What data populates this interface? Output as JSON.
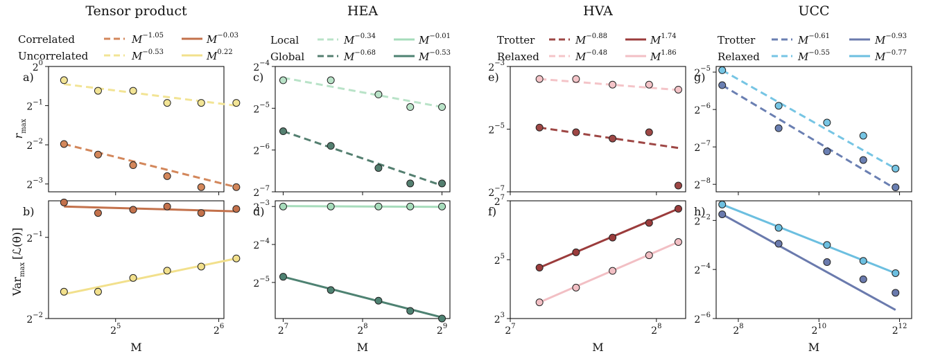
{
  "figure": {
    "columns": [
      {
        "title": "Tensor product",
        "xlabel": "M",
        "legend_rows": [
          {
            "label": "Correlated",
            "series": [
              {
                "text": "M",
                "exp": "−1.05",
                "color": "#d3875b",
                "style": "dashed"
              },
              {
                "text": "M",
                "exp": "−0.03",
                "color": "#c3714b",
                "style": "solid"
              }
            ]
          },
          {
            "label": "Uncorrelated",
            "series": [
              {
                "text": "M",
                "exp": "−0.53",
                "color": "#f2e495",
                "style": "dashed"
              },
              {
                "text": "M",
                "exp": "0.22",
                "color": "#f2e08c",
                "style": "solid"
              }
            ]
          }
        ],
        "xticks": [
          {
            "label": "2",
            "exp": "5",
            "v": 5
          },
          {
            "label": "2",
            "exp": "6",
            "v": 6
          }
        ],
        "xlim": [
          4.35,
          6.05
        ]
      },
      {
        "title": "HEA",
        "xlabel": "M",
        "legend_rows": [
          {
            "label": "Local",
            "series": [
              {
                "text": "M",
                "exp": "−0.34",
                "color": "#b9e3c8",
                "style": "dashed"
              },
              {
                "text": "M",
                "exp": "−0.01",
                "color": "#a6dcbb",
                "style": "solid"
              }
            ]
          },
          {
            "label": "Global",
            "series": [
              {
                "text": "M",
                "exp": "−0.68",
                "color": "#547f70",
                "style": "dashed"
              },
              {
                "text": "M",
                "exp": "−0.53",
                "color": "#4e8272",
                "style": "solid"
              }
            ]
          }
        ],
        "xticks": [
          {
            "label": "2",
            "exp": "7",
            "v": 7
          },
          {
            "label": "2",
            "exp": "8",
            "v": 8
          },
          {
            "label": "2",
            "exp": "9",
            "v": 9
          }
        ],
        "xlim": [
          6.9,
          9.1
        ]
      },
      {
        "title": "HVA",
        "xlabel": "M",
        "legend_rows": [
          {
            "label": "Trotter",
            "series": [
              {
                "text": "M",
                "exp": "−0.88",
                "color": "#9e4745",
                "style": "dashed"
              },
              {
                "text": "M",
                "exp": "1.74",
                "color": "#9b3c3c",
                "style": "solid"
              }
            ]
          },
          {
            "label": "Relaxed",
            "series": [
              {
                "text": "M",
                "exp": "−0.48",
                "color": "#f4c4c8",
                "style": "dashed"
              },
              {
                "text": "M",
                "exp": "1.86",
                "color": "#f2bfc4",
                "style": "solid"
              }
            ]
          }
        ],
        "xticks": [
          {
            "label": "2",
            "exp": "7",
            "v": 7
          },
          {
            "label": "2",
            "exp": "8",
            "v": 8
          }
        ],
        "xlim": [
          7.0,
          8.2
        ]
      },
      {
        "title": "UCC",
        "xlabel": "M",
        "legend_rows": [
          {
            "label": "Trotter",
            "series": [
              {
                "text": "M",
                "exp": "−0.61",
                "color": "#6a7fb2",
                "style": "dashed"
              },
              {
                "text": "M",
                "exp": "−0.93",
                "color": "#6a7aad",
                "style": "solid"
              }
            ]
          },
          {
            "label": "Relaxed",
            "series": [
              {
                "text": "M",
                "exp": "−0.55",
                "color": "#76c5e4",
                "style": "dashed"
              },
              {
                "text": "M",
                "exp": "−0.77",
                "color": "#6cbfe0",
                "style": "solid"
              }
            ]
          }
        ],
        "xticks": [
          {
            "label": "2",
            "exp": "8",
            "v": 8
          },
          {
            "label": "2",
            "exp": "10",
            "v": 10
          },
          {
            "label": "2",
            "exp": "12",
            "v": 12
          }
        ],
        "xlim": [
          7.45,
          12.3
        ]
      }
    ],
    "row_ylabels": [
      {
        "main": "r",
        "sub": "max"
      },
      {
        "main": "Var",
        "sub": "max",
        "tail": "[ℒ(θ)]"
      }
    ]
  },
  "chart_data": [
    {
      "panel": "a)",
      "type": "scatter",
      "xscale": "log2",
      "yscale": "log2",
      "ylim": [
        -3.2,
        0.0
      ],
      "yticks": [
        {
          "label": "2",
          "exp": "0",
          "v": 0
        },
        {
          "label": "2",
          "exp": "−1",
          "v": -1
        },
        {
          "label": "2",
          "exp": "−2",
          "v": -2
        },
        {
          "label": "2",
          "exp": "−3",
          "v": -3
        }
      ],
      "series": [
        {
          "legend": "Uncorrelated",
          "color": "#f2e495",
          "line": "dashed",
          "x": [
            4.5,
            4.83,
            5.17,
            5.5,
            5.83,
            6.17
          ],
          "y": [
            -0.35,
            -0.62,
            -0.62,
            -0.93,
            -0.93,
            -0.93
          ],
          "fit": [
            [
              4.5,
              -0.45
            ],
            [
              6.17,
              -1.0
            ]
          ]
        },
        {
          "legend": "Correlated",
          "color": "#d3875b",
          "line": "dashed",
          "x": [
            4.5,
            4.83,
            5.17,
            5.5,
            5.83,
            6.17
          ],
          "y": [
            -1.98,
            -2.25,
            -2.52,
            -2.8,
            -3.08,
            -3.08
          ],
          "fit": [
            [
              4.5,
              -1.98
            ],
            [
              6.17,
              -3.08
            ]
          ]
        }
      ]
    },
    {
      "panel": "b)",
      "type": "scatter",
      "xscale": "log2",
      "yscale": "log2",
      "ylim": [
        -2.0,
        -0.55
      ],
      "yticks": [
        {
          "label": "2",
          "exp": "−1",
          "v": -1
        },
        {
          "label": "2",
          "exp": "−2",
          "v": -2
        }
      ],
      "series": [
        {
          "legend": "Correlated",
          "color": "#c3714b",
          "line": "solid",
          "x": [
            4.5,
            4.83,
            5.17,
            5.5,
            5.83,
            6.17
          ],
          "y": [
            -0.57,
            -0.7,
            -0.66,
            -0.62,
            -0.7,
            -0.65
          ],
          "fit": [
            [
              4.5,
              -0.62
            ],
            [
              6.17,
              -0.68
            ]
          ]
        },
        {
          "legend": "Uncorrelated",
          "color": "#f2e08c",
          "line": "solid",
          "x": [
            4.5,
            4.83,
            5.17,
            5.5,
            5.83,
            6.17
          ],
          "y": [
            -1.67,
            -1.67,
            -1.5,
            -1.41,
            -1.36,
            -1.26
          ],
          "fit": [
            [
              4.5,
              -1.7
            ],
            [
              6.17,
              -1.26
            ]
          ]
        }
      ]
    },
    {
      "panel": "c)",
      "type": "scatter",
      "xscale": "log2",
      "yscale": "log2",
      "ylim": [
        -7.0,
        -4.0
      ],
      "yticks": [
        {
          "label": "2",
          "exp": "−4",
          "v": -4
        },
        {
          "label": "2",
          "exp": "−5",
          "v": -5
        },
        {
          "label": "2",
          "exp": "−6",
          "v": -6
        },
        {
          "label": "2",
          "exp": "−7",
          "v": -7
        }
      ],
      "series": [
        {
          "legend": "Local",
          "color": "#b9e3c8",
          "line": "dashed",
          "x": [
            7.0,
            7.6,
            8.2,
            8.6,
            9.0
          ],
          "y": [
            -4.33,
            -4.33,
            -4.67,
            -4.97,
            -4.97
          ],
          "fit": [
            [
              7.0,
              -4.27
            ],
            [
              9.0,
              -4.97
            ]
          ]
        },
        {
          "legend": "Global",
          "color": "#547f70",
          "line": "dashed",
          "x": [
            7.0,
            7.6,
            8.2,
            8.6,
            9.0
          ],
          "y": [
            -5.55,
            -5.9,
            -6.43,
            -6.8,
            -6.8
          ],
          "fit": [
            [
              7.0,
              -5.55
            ],
            [
              9.0,
              -6.85
            ]
          ]
        }
      ]
    },
    {
      "panel": "d)",
      "type": "scatter",
      "xscale": "log2",
      "yscale": "log2",
      "ylim": [
        -5.95,
        -2.85
      ],
      "yticks": [
        {
          "label": "2",
          "exp": "−3",
          "v": -3
        },
        {
          "label": "2",
          "exp": "−4",
          "v": -4
        },
        {
          "label": "2",
          "exp": "−5",
          "v": -5
        }
      ],
      "series": [
        {
          "legend": "Local",
          "color": "#a6dcbb",
          "line": "solid",
          "x": [
            7.0,
            7.6,
            8.2,
            8.6,
            9.0
          ],
          "y": [
            -3.0,
            -3.0,
            -3.0,
            -3.0,
            -3.0
          ],
          "fit": [
            [
              7.0,
              -2.99
            ],
            [
              9.0,
              -3.01
            ]
          ]
        },
        {
          "legend": "Global",
          "color": "#4e8272",
          "line": "solid",
          "x": [
            7.0,
            7.6,
            8.2,
            8.6,
            9.0
          ],
          "y": [
            -4.85,
            -5.2,
            -5.48,
            -5.75,
            -5.95
          ],
          "fit": [
            [
              7.0,
              -4.85
            ],
            [
              9.0,
              -5.92
            ]
          ]
        }
      ]
    },
    {
      "panel": "e)",
      "type": "scatter",
      "xscale": "log2",
      "yscale": "log2",
      "ylim": [
        -7.0,
        -3.0
      ],
      "yticks": [
        {
          "label": "2",
          "exp": "−3",
          "v": -3
        },
        {
          "label": "2",
          "exp": "−5",
          "v": -5
        },
        {
          "label": "2",
          "exp": "−7",
          "v": -7
        }
      ],
      "series": [
        {
          "legend": "Relaxed",
          "color": "#f4c4c8",
          "line": "dashed",
          "x": [
            7.2,
            7.45,
            7.7,
            7.95,
            8.15
          ],
          "y": [
            -3.4,
            -3.4,
            -3.58,
            -3.58,
            -3.74
          ],
          "fit": [
            [
              7.2,
              -3.4
            ],
            [
              8.15,
              -3.75
            ]
          ]
        },
        {
          "legend": "Trotter",
          "color": "#9e4745",
          "line": "dashed",
          "x": [
            7.2,
            7.45,
            7.7,
            7.95,
            8.15
          ],
          "y": [
            -4.95,
            -5.1,
            -5.3,
            -5.1,
            -6.8
          ],
          "fit": [
            [
              7.2,
              -4.95
            ],
            [
              8.15,
              -5.6
            ]
          ]
        }
      ]
    },
    {
      "panel": "f)",
      "type": "scatter",
      "xscale": "log2",
      "yscale": "log2",
      "ylim": [
        3.0,
        7.0
      ],
      "yticks": [
        {
          "label": "2",
          "exp": "7",
          "v": 7
        },
        {
          "label": "2",
          "exp": "5",
          "v": 5
        },
        {
          "label": "2",
          "exp": "3",
          "v": 3
        }
      ],
      "series": [
        {
          "legend": "Trotter",
          "color": "#9b3c3c",
          "line": "solid",
          "x": [
            7.2,
            7.45,
            7.7,
            7.95,
            8.15
          ],
          "y": [
            4.73,
            5.25,
            5.75,
            6.25,
            6.73
          ],
          "fit": [
            [
              7.2,
              4.73
            ],
            [
              8.15,
              6.73
            ]
          ]
        },
        {
          "legend": "Relaxed",
          "color": "#f2bfc4",
          "line": "solid",
          "x": [
            7.2,
            7.45,
            7.7,
            7.95,
            8.15
          ],
          "y": [
            3.55,
            4.05,
            4.62,
            5.15,
            5.6
          ],
          "fit": [
            [
              7.2,
              3.55
            ],
            [
              8.15,
              5.6
            ]
          ]
        }
      ]
    },
    {
      "panel": "g)",
      "type": "scatter",
      "xscale": "log2",
      "yscale": "log2",
      "ylim": [
        -8.2,
        -4.85
      ],
      "yticks": [
        {
          "label": "2",
          "exp": "−5",
          "v": -5
        },
        {
          "label": "2",
          "exp": "−6",
          "v": -6
        },
        {
          "label": "2",
          "exp": "−7",
          "v": -7
        },
        {
          "label": "2",
          "exp": "−8",
          "v": -8
        }
      ],
      "series": [
        {
          "legend": "Relaxed",
          "color": "#76c5e4",
          "line": "dashed",
          "x": [
            7.6,
            9.0,
            10.2,
            11.1,
            11.9
          ],
          "y": [
            -4.95,
            -5.9,
            -6.35,
            -6.7,
            -7.58
          ],
          "fit": [
            [
              7.6,
              -4.95
            ],
            [
              11.9,
              -7.58
            ]
          ]
        },
        {
          "legend": "Trotter",
          "color": "#6a7fb2",
          "line": "dashed",
          "x": [
            7.6,
            9.0,
            10.2,
            11.1,
            11.9
          ],
          "y": [
            -5.35,
            -6.5,
            -7.12,
            -7.35,
            -8.08
          ],
          "fit": [
            [
              7.6,
              -5.35
            ],
            [
              11.9,
              -8.12
            ]
          ]
        }
      ]
    },
    {
      "panel": "h)",
      "type": "scatter",
      "xscale": "log2",
      "yscale": "log2",
      "ylim": [
        -6.0,
        -1.2
      ],
      "yticks": [
        {
          "label": "2",
          "exp": "−2",
          "v": -2
        },
        {
          "label": "2",
          "exp": "−4",
          "v": -4
        },
        {
          "label": "2",
          "exp": "−6",
          "v": -6
        }
      ],
      "series": [
        {
          "legend": "Relaxed",
          "color": "#6cbfe0",
          "line": "solid",
          "x": [
            7.6,
            9.0,
            10.2,
            11.1,
            11.9
          ],
          "y": [
            -1.35,
            -2.3,
            -3.0,
            -3.65,
            -4.15
          ],
          "fit": [
            [
              7.6,
              -1.35
            ],
            [
              11.9,
              -4.15
            ]
          ]
        },
        {
          "legend": "Trotter",
          "color": "#6a7aad",
          "line": "solid",
          "x": [
            7.6,
            9.0,
            10.2,
            11.1,
            11.9
          ],
          "y": [
            -1.75,
            -2.95,
            -3.7,
            -4.4,
            -4.95
          ],
          "fit": [
            [
              7.6,
              -1.75
            ],
            [
              11.9,
              -5.65
            ]
          ]
        }
      ]
    }
  ]
}
